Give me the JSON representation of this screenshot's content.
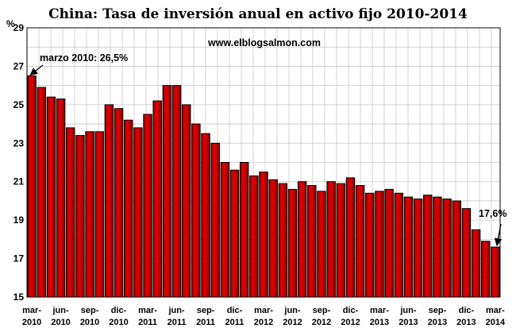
{
  "chart_data": {
    "type": "bar",
    "title": "China: Tasa de inversión anual en activo fijo 2010-2014",
    "watermark": "www.elblogsalmon.com",
    "ylabel": "%",
    "ylim": [
      15,
      29
    ],
    "yticks": [
      15,
      17,
      19,
      21,
      23,
      25,
      27,
      29
    ],
    "grid": true,
    "bar_color": "#cc0000",
    "values": [
      26.5,
      25.9,
      25.4,
      25.3,
      23.8,
      23.4,
      23.6,
      23.6,
      25.0,
      24.8,
      24.2,
      23.8,
      24.5,
      25.2,
      26.0,
      26.0,
      25.0,
      24.0,
      23.5,
      23.0,
      22.0,
      21.6,
      22.0,
      21.3,
      21.5,
      21.1,
      20.9,
      20.6,
      21.0,
      20.8,
      20.5,
      21.0,
      20.9,
      21.2,
      20.8,
      20.4,
      20.5,
      20.6,
      20.4,
      20.2,
      20.1,
      20.3,
      20.2,
      20.1,
      20.0,
      19.6,
      18.5,
      17.9,
      17.6
    ],
    "x_tick_labels": [
      {
        "index": 0,
        "line1": "mar-",
        "line2": "2010"
      },
      {
        "index": 3,
        "line1": "jun-",
        "line2": "2010"
      },
      {
        "index": 6,
        "line1": "sep-",
        "line2": "2010"
      },
      {
        "index": 9,
        "line1": "dic-",
        "line2": "2010"
      },
      {
        "index": 12,
        "line1": "mar-",
        "line2": "2011"
      },
      {
        "index": 15,
        "line1": "jun-",
        "line2": "2011"
      },
      {
        "index": 18,
        "line1": "sep-",
        "line2": "2011"
      },
      {
        "index": 21,
        "line1": "dic-",
        "line2": "2011"
      },
      {
        "index": 24,
        "line1": "mar-",
        "line2": "2012"
      },
      {
        "index": 27,
        "line1": "jun-",
        "line2": "2012"
      },
      {
        "index": 30,
        "line1": "sep-",
        "line2": "2012"
      },
      {
        "index": 33,
        "line1": "dic-",
        "line2": "2012"
      },
      {
        "index": 36,
        "line1": "mar-",
        "line2": "2013"
      },
      {
        "index": 39,
        "line1": "jun-",
        "line2": "2013"
      },
      {
        "index": 42,
        "line1": "sep-",
        "line2": "2013"
      },
      {
        "index": 45,
        "line1": "dic-",
        "line2": "2013"
      },
      {
        "index": 48,
        "line1": "mar-",
        "line2": "2014"
      }
    ],
    "annotations": [
      {
        "text": "marzo 2010: 26,5%",
        "bar_index": 0
      },
      {
        "text": "17,6%",
        "bar_index": 48
      }
    ]
  }
}
